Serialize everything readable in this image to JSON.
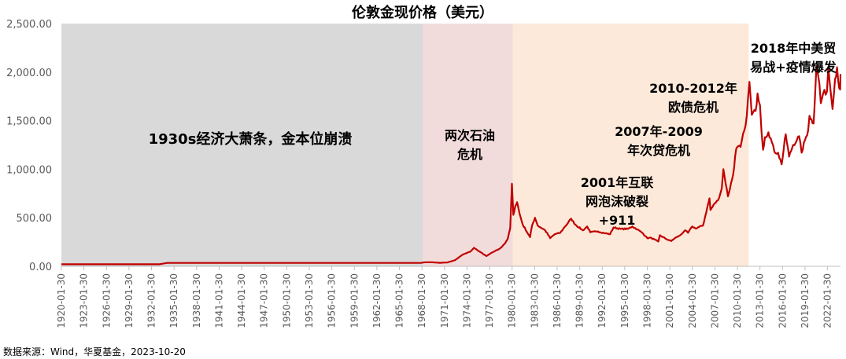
{
  "chart_data": {
    "type": "line",
    "title": "伦敦金现价格（美元）",
    "ylim": [
      0,
      2500
    ],
    "yticks": [
      "0.00",
      "500.00",
      "1,000.00",
      "1,500.00",
      "2,000.00",
      "2,500.00"
    ],
    "xticks": [
      "1920-01-30",
      "1923-01-30",
      "1926-01-30",
      "1929-01-30",
      "1932-01-30",
      "1935-01-30",
      "1938-01-30",
      "1941-01-30",
      "1944-01-30",
      "1947-01-30",
      "1950-01-30",
      "1953-01-30",
      "1956-01-30",
      "1959-01-30",
      "1962-01-30",
      "1965-01-30",
      "1968-01-30",
      "1971-01-30",
      "1974-01-30",
      "1977-01-30",
      "1980-01-30",
      "1983-01-30",
      "1986-01-30",
      "1989-01-30",
      "1992-01-30",
      "1995-01-30",
      "1998-01-30",
      "2001-01-30",
      "2004-01-30",
      "2007-01-30",
      "2010-01-30",
      "2013-01-30",
      "2016-01-30",
      "2019-01-30",
      "2022-01-30"
    ],
    "xlim": [
      "1920-01-30",
      "2023-10-20"
    ],
    "grid": false,
    "legend": "none",
    "series": [
      {
        "color": "#c00000",
        "x": [
          "1920-01-30",
          "1933-01-30",
          "1934-02-28",
          "1940-01-30",
          "1950-01-30",
          "1960-01-30",
          "1967-12-30",
          "1968-03-30",
          "1968-06-30",
          "1969-06-30",
          "1970-06-30",
          "1971-06-30",
          "1972-06-30",
          "1973-06-30",
          "1974-06-30",
          "1974-12-30",
          "1975-06-30",
          "1976-08-30",
          "1977-06-30",
          "1978-06-30",
          "1979-01-30",
          "1979-06-30",
          "1979-10-30",
          "1980-01-21",
          "1980-03-30",
          "1980-06-30",
          "1980-09-30",
          "1981-01-30",
          "1981-06-30",
          "1982-06-21",
          "1982-09-30",
          "1983-02-15",
          "1983-06-30",
          "1984-06-30",
          "1985-02-25",
          "1985-09-30",
          "1986-06-30",
          "1987-01-30",
          "1987-12-14",
          "1988-06-30",
          "1989-06-30",
          "1990-01-30",
          "1990-06-30",
          "1991-06-30",
          "1992-06-30",
          "1993-02-15",
          "1993-08-01",
          "1994-06-30",
          "1995-06-30",
          "1996-02-05",
          "1996-09-30",
          "1997-06-30",
          "1998-01-30",
          "1998-06-30",
          "1999-07-20",
          "1999-10-05",
          "2000-06-30",
          "2001-04-01",
          "2001-09-30",
          "2002-06-30",
          "2003-01-30",
          "2003-06-30",
          "2004-01-30",
          "2004-06-30",
          "2005-06-30",
          "2006-05-12",
          "2006-06-30",
          "2007-01-30",
          "2007-06-30",
          "2007-12-30",
          "2008-03-17",
          "2008-10-24",
          "2009-06-30",
          "2009-12-01",
          "2010-06-30",
          "2010-12-30",
          "2011-04-30",
          "2011-09-05",
          "2011-12-30",
          "2012-06-30",
          "2012-10-05",
          "2013-01-30",
          "2013-04-15",
          "2013-06-28",
          "2013-09-30",
          "2014-03-15",
          "2014-06-30",
          "2014-12-30",
          "2015-06-30",
          "2015-12-17",
          "2016-07-06",
          "2016-12-15",
          "2017-06-30",
          "2017-12-30",
          "2018-04-15",
          "2018-08-16",
          "2019-01-30",
          "2019-06-30",
          "2019-09-04",
          "2020-03-19",
          "2020-08-06",
          "2020-12-30",
          "2021-03-08",
          "2021-06-30",
          "2021-12-30",
          "2022-03-08",
          "2022-06-30",
          "2022-09-28",
          "2023-01-30",
          "2023-05-04",
          "2023-06-30",
          "2023-10-06",
          "2023-10-20"
        ],
        "values": [
          20.67,
          20.67,
          35,
          35,
          35,
          35,
          35,
          40,
          41,
          41,
          36,
          40,
          64,
          120,
          150,
          190,
          165,
          105,
          145,
          185,
          230,
          280,
          390,
          850,
          530,
          620,
          660,
          540,
          430,
          300,
          420,
          500,
          420,
          370,
          290,
          330,
          345,
          405,
          490,
          430,
          370,
          410,
          350,
          360,
          340,
          330,
          400,
          385,
          385,
          410,
          380,
          340,
          290,
          295,
          255,
          320,
          285,
          260,
          290,
          320,
          370,
          345,
          410,
          390,
          420,
          700,
          580,
          650,
          680,
          800,
          1000,
          720,
          940,
          1210,
          1230,
          1400,
          1550,
          1900,
          1560,
          1600,
          1780,
          1660,
          1380,
          1200,
          1330,
          1380,
          1320,
          1180,
          1170,
          1050,
          1360,
          1130,
          1250,
          1300,
          1340,
          1170,
          1300,
          1400,
          1550,
          1470,
          2060,
          1880,
          1680,
          1780,
          1800,
          2050,
          1800,
          1620,
          1930,
          2050,
          1910,
          1820,
          1980
        ]
      }
    ],
    "shaded_regions": [
      {
        "from": "1920-01-30",
        "to": "1968-03-30",
        "color": "#d9d9d9",
        "label": "1930s经济大萧条，金本位崩溃"
      },
      {
        "from": "1968-03-30",
        "to": "1980-03-01",
        "color": "#f2dcdb",
        "label": "两次石油危机"
      },
      {
        "from": "1980-03-01",
        "to": "2011-07-30",
        "color": "#fde9d9",
        "label": ""
      }
    ],
    "annotations": [
      {
        "id": "depression",
        "lines": [
          "1930s经济大萧条，金本位崩溃"
        ]
      },
      {
        "id": "oil",
        "lines": [
          "两次石油",
          "危机"
        ]
      },
      {
        "id": "dotcom",
        "lines": [
          "2001年互联",
          "网泡沫破裂",
          "+911"
        ]
      },
      {
        "id": "subprime",
        "lines": [
          "2007年-2009",
          "年次贷危机"
        ]
      },
      {
        "id": "euro",
        "lines": [
          "2010-2012年",
          "欧债危机"
        ]
      },
      {
        "id": "trade",
        "lines": [
          "2018年中美贸",
          "易战+疫情爆发"
        ]
      }
    ],
    "source": "数据来源：Wind，华夏基金，2023-10-20"
  }
}
